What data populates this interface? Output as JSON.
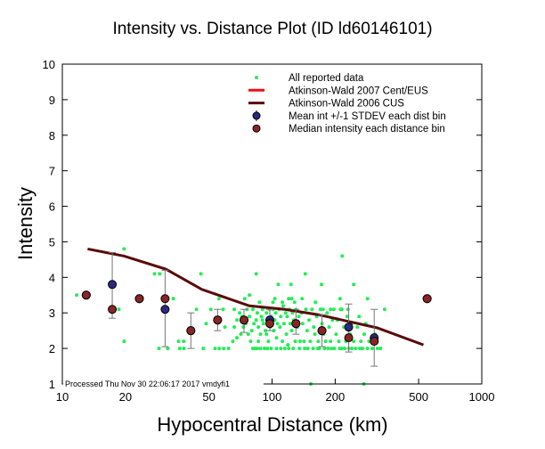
{
  "chart_data": {
    "type": "scatter",
    "title": "Intensity vs. Distance Plot (ID ld60146101)",
    "xlabel": "Hypocentral Distance (km)",
    "ylabel": "Intensity",
    "xscale": "log",
    "xlim": [
      10,
      1000
    ],
    "ylim": [
      1,
      10
    ],
    "xticks": [
      10,
      20,
      50,
      100,
      200,
      500,
      1000
    ],
    "yticks": [
      1,
      2,
      3,
      4,
      5,
      6,
      7,
      8,
      9,
      10
    ],
    "legend_position": "top-right",
    "footer": "Processed Thu Nov 30 22:06:17 2017 vmdyfi1",
    "colors": {
      "reported": "#22ee55",
      "aw2007": "#ee1111",
      "aw2006": "#5a0a0a",
      "mean": "#2a2a80",
      "median": "#8b2424",
      "errorbar": "#777777"
    },
    "legend": [
      {
        "label": "All reported data",
        "kind": "dot"
      },
      {
        "label": "Atkinson-Wald 2007 Cent/EUS",
        "kind": "line-red"
      },
      {
        "label": "Atkinson-Wald 2006 CUS",
        "kind": "line-dark"
      },
      {
        "label": "Mean int +/-1 STDEV each dist bin",
        "kind": "mean"
      },
      {
        "label": "Median intensity each distance bin",
        "kind": "median"
      }
    ],
    "aw2006_curve": [
      [
        13.2,
        4.8
      ],
      [
        19.7,
        4.6
      ],
      [
        31.2,
        4.23
      ],
      [
        46.3,
        3.66
      ],
      [
        77.9,
        3.2
      ],
      [
        115,
        3.1
      ],
      [
        166,
        2.95
      ],
      [
        317,
        2.58
      ],
      [
        527,
        2.1
      ]
    ],
    "bins": [
      {
        "d": 13.0,
        "mean": 3.5,
        "median": 3.5,
        "sd_low": 3.5,
        "sd_high": 3.5
      },
      {
        "d": 17.3,
        "mean": 3.8,
        "median": 3.1,
        "sd_low": 2.85,
        "sd_high": 4.7
      },
      {
        "d": 23.3,
        "mean": 3.4,
        "median": 3.4,
        "sd_low": 3.4,
        "sd_high": 3.4
      },
      {
        "d": 30.9,
        "mean": 3.1,
        "median": 3.4,
        "sd_low": 2.05,
        "sd_high": 4.2
      },
      {
        "d": 41.0,
        "mean": 2.5,
        "median": 2.5,
        "sd_low": 2.0,
        "sd_high": 3.0
      },
      {
        "d": 55.0,
        "mean": 2.8,
        "median": 2.8,
        "sd_low": 2.5,
        "sd_high": 3.1
      },
      {
        "d": 73.5,
        "mean": 2.8,
        "median": 2.8,
        "sd_low": 2.45,
        "sd_high": 3.1
      },
      {
        "d": 97.6,
        "mean": 2.8,
        "median": 2.7,
        "sd_low": 2.5,
        "sd_high": 3.1
      },
      {
        "d": 130,
        "mean": 2.7,
        "median": 2.7,
        "sd_low": 2.4,
        "sd_high": 3.1
      },
      {
        "d": 173,
        "mean": 2.5,
        "median": 2.5,
        "sd_low": 2.05,
        "sd_high": 2.95
      },
      {
        "d": 232,
        "mean": 2.6,
        "median": 2.3,
        "sd_low": 1.9,
        "sd_high": 3.25
      },
      {
        "d": 307,
        "mean": 2.3,
        "median": 2.2,
        "sd_low": 1.5,
        "sd_high": 3.1
      },
      {
        "d": 549,
        "mean": 3.4,
        "median": 3.4,
        "sd_low": 3.4,
        "sd_high": 3.4
      }
    ],
    "reported": [
      [
        11.7,
        3.5
      ],
      [
        19.7,
        4.8
      ],
      [
        19.7,
        2.2
      ],
      [
        18.6,
        3.1
      ],
      [
        27.5,
        4.1
      ],
      [
        29.1,
        4.1
      ],
      [
        33.8,
        3.4
      ],
      [
        28.9,
        2.0
      ],
      [
        31.8,
        2.0
      ],
      [
        35.8,
        2.2
      ],
      [
        37.9,
        2.2
      ],
      [
        36.3,
        2.0
      ],
      [
        37.9,
        2.0
      ],
      [
        43.6,
        3.1
      ],
      [
        45.8,
        4.1
      ],
      [
        47,
        2.0
      ],
      [
        48.5,
        2.7
      ],
      [
        53.5,
        2.0
      ],
      [
        56,
        2.0
      ],
      [
        58.8,
        2.0
      ],
      [
        51,
        3.1
      ],
      [
        58.4,
        3.1
      ],
      [
        55.8,
        3.4
      ],
      [
        59.6,
        2.6
      ],
      [
        84,
        4.1
      ],
      [
        107,
        3.8
      ],
      [
        62,
        2.0
      ],
      [
        65,
        2.2
      ],
      [
        66,
        2.6
      ],
      [
        68,
        2.8
      ],
      [
        70,
        3.0
      ],
      [
        71,
        2.4
      ],
      [
        73,
        2.6
      ],
      [
        75,
        2.7
      ],
      [
        76,
        3.1
      ],
      [
        78,
        2.9
      ],
      [
        79,
        2.2
      ],
      [
        80,
        2.5
      ],
      [
        81,
        3.1
      ],
      [
        82,
        2.7
      ],
      [
        83,
        2.0
      ],
      [
        84,
        2.8
      ],
      [
        85,
        3.0
      ],
      [
        86,
        2.6
      ],
      [
        87,
        3.3
      ],
      [
        88,
        2.4
      ],
      [
        89,
        2.9
      ],
      [
        90,
        3.1
      ],
      [
        91,
        2.7
      ],
      [
        92,
        2.0
      ],
      [
        93,
        2.5
      ],
      [
        94,
        3.0
      ],
      [
        95,
        2.8
      ],
      [
        96,
        2.2
      ],
      [
        97,
        3.1
      ],
      [
        98,
        2.6
      ],
      [
        99,
        2.9
      ],
      [
        66,
        3.1
      ],
      [
        68,
        2.3
      ],
      [
        72,
        2.9
      ],
      [
        77,
        2.4
      ],
      [
        81,
        2.0
      ],
      [
        86,
        2.2
      ],
      [
        90,
        2.8
      ],
      [
        94,
        2.4
      ],
      [
        74,
        3.4
      ],
      [
        78,
        3.5
      ],
      [
        85,
        2.0
      ],
      [
        88,
        2.0
      ],
      [
        95,
        2.0
      ],
      [
        99,
        2.0
      ],
      [
        101,
        3.1
      ],
      [
        102,
        2.5
      ],
      [
        103,
        2.8
      ],
      [
        104,
        3.0
      ],
      [
        105,
        2.3
      ],
      [
        106,
        2.7
      ],
      [
        108,
        3.1
      ],
      [
        109,
        2.6
      ],
      [
        110,
        2.9
      ],
      [
        112,
        2.2
      ],
      [
        113,
        3.2
      ],
      [
        114,
        2.7
      ],
      [
        116,
        3.0
      ],
      [
        117,
        2.4
      ],
      [
        118,
        2.9
      ],
      [
        119,
        2.1
      ],
      [
        121,
        3.1
      ],
      [
        122,
        2.7
      ],
      [
        124,
        2.5
      ],
      [
        125,
        3.0
      ],
      [
        127,
        2.8
      ],
      [
        129,
        2.2
      ],
      [
        130,
        3.1
      ],
      [
        132,
        2.6
      ],
      [
        134,
        2.9
      ],
      [
        136,
        2.2
      ],
      [
        138,
        3.0
      ],
      [
        140,
        2.7
      ],
      [
        142,
        2.2
      ],
      [
        145,
        3.1
      ],
      [
        147,
        2.5
      ],
      [
        150,
        2.8
      ],
      [
        152,
        2.2
      ],
      [
        155,
        3.1
      ],
      [
        158,
        2.6
      ],
      [
        160,
        2.4
      ],
      [
        163,
        2.9
      ],
      [
        166,
        2.2
      ],
      [
        170,
        3.1
      ],
      [
        173,
        2.7
      ],
      [
        176,
        2.4
      ],
      [
        180,
        2.2
      ],
      [
        183,
        3.0
      ],
      [
        187,
        2.6
      ],
      [
        190,
        2.2
      ],
      [
        194,
        2.8
      ],
      [
        197,
        3.1
      ],
      [
        105,
        2.0
      ],
      [
        110,
        2.0
      ],
      [
        115,
        2.0
      ],
      [
        120,
        2.0
      ],
      [
        126,
        2.0
      ],
      [
        135,
        2.0
      ],
      [
        143,
        2.0
      ],
      [
        148,
        2.0
      ],
      [
        157,
        2.0
      ],
      [
        165,
        2.0
      ],
      [
        168,
        2.0
      ],
      [
        178,
        2.0
      ],
      [
        185,
        2.0
      ],
      [
        192,
        2.0
      ],
      [
        198,
        2.0
      ],
      [
        103,
        3.4
      ],
      [
        112,
        3.3
      ],
      [
        128,
        3.3
      ],
      [
        139,
        3.4
      ],
      [
        175,
        3.1
      ],
      [
        190,
        3.1
      ],
      [
        216,
        4.6
      ],
      [
        144,
        4.1
      ],
      [
        123,
        3.8
      ],
      [
        172,
        3.8
      ],
      [
        245,
        3.8
      ],
      [
        285,
        3.4
      ],
      [
        211,
        3.4
      ],
      [
        120,
        3.4
      ],
      [
        124,
        3.4
      ],
      [
        101,
        3.3
      ],
      [
        161,
        3.3
      ],
      [
        344,
        3.1
      ],
      [
        329,
        2.0
      ],
      [
        153,
        1.0
      ],
      [
        274,
        1.0
      ],
      [
        202,
        2.4
      ],
      [
        205,
        2.8
      ],
      [
        208,
        2.2
      ],
      [
        212,
        3.1
      ],
      [
        215,
        2.0
      ],
      [
        220,
        2.6
      ],
      [
        225,
        2.2
      ],
      [
        228,
        2.9
      ],
      [
        232,
        2.0
      ],
      [
        236,
        2.4
      ],
      [
        240,
        2.7
      ],
      [
        245,
        2.2
      ],
      [
        250,
        2.0
      ],
      [
        255,
        2.6
      ],
      [
        260,
        2.9
      ],
      [
        265,
        2.2
      ],
      [
        270,
        2.0
      ],
      [
        275,
        2.4
      ],
      [
        280,
        2.7
      ],
      [
        290,
        2.2
      ],
      [
        300,
        2.0
      ],
      [
        310,
        2.4
      ],
      [
        318,
        2.0
      ],
      [
        210,
        2.0
      ],
      [
        222,
        2.0
      ],
      [
        240,
        2.0
      ],
      [
        262,
        2.0
      ],
      [
        285,
        2.0
      ],
      [
        305,
        2.2
      ],
      [
        215,
        3.1
      ],
      [
        230,
        3.1
      ]
    ]
  }
}
